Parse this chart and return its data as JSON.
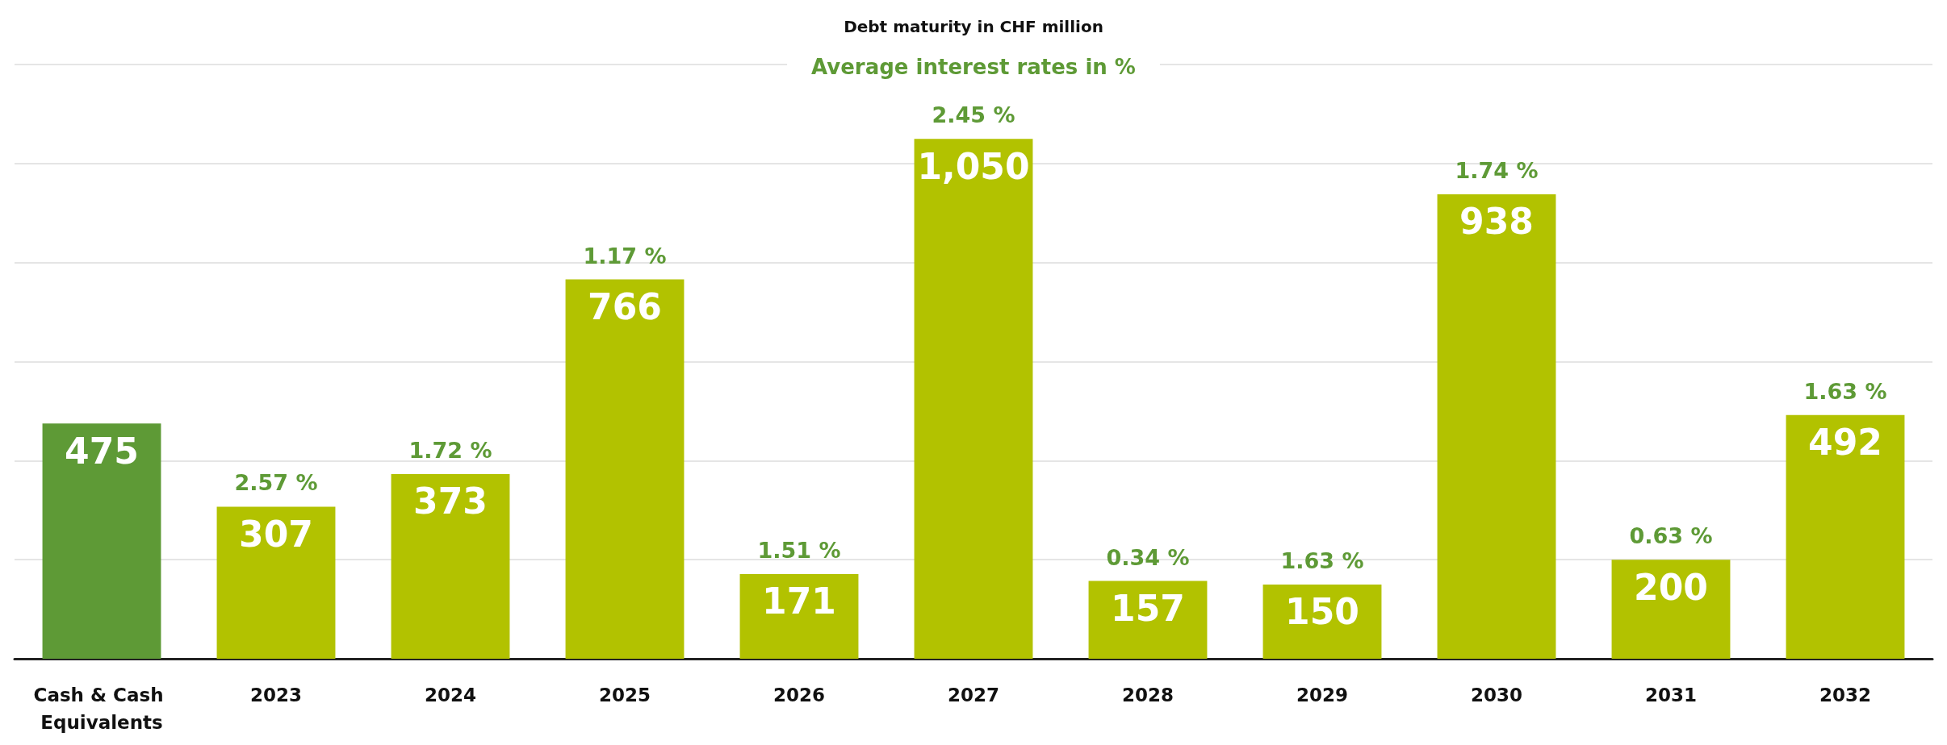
{
  "chart_data": {
    "type": "bar",
    "title": "Debt maturity in CHF million",
    "subtitle": "Average interest rates in %",
    "categories": [
      "Cash & Cash Equivalents",
      "2023",
      "2024",
      "2025",
      "2026",
      "2027",
      "2028",
      "2029",
      "2030",
      "2031",
      "2032"
    ],
    "values": [
      475,
      307,
      373,
      766,
      171,
      1050,
      157,
      150,
      938,
      200,
      492
    ],
    "value_labels": [
      "475",
      "307",
      "373",
      "766",
      "171",
      "1,050",
      "157",
      "150",
      "938",
      "200",
      "492"
    ],
    "colors": [
      "#5e9a36",
      "#b2c200",
      "#b2c200",
      "#b2c200",
      "#b2c200",
      "#b2c200",
      "#b2c200",
      "#b2c200",
      "#b2c200",
      "#b2c200",
      "#b2c200"
    ],
    "annotations": [
      {
        "text": "2.57 %",
        "x": "2023",
        "y": 307
      },
      {
        "text": "1.72 %",
        "x": "2024",
        "y": 373
      },
      {
        "text": "1.17 %",
        "x": "2025",
        "y": 766
      },
      {
        "text": "1.51 %",
        "x": "2026",
        "y": 171
      },
      {
        "text": "2.45 %",
        "x": "2027",
        "y": 1050
      },
      {
        "text": "0.34 %",
        "x": "2028",
        "y": 157
      },
      {
        "text": "1.63 %",
        "x": "2029",
        "y": 150
      },
      {
        "text": "1.74 %",
        "x": "2030",
        "y": 938
      },
      {
        "text": "0.63 %",
        "x": "2031",
        "y": 200
      },
      {
        "text": "1.63 %",
        "x": "2032",
        "y": 492
      }
    ],
    "ylim": [
      0,
      1200
    ],
    "yticks": [
      {
        "value": 0,
        "label": null
      },
      {
        "value": 200,
        "label": null
      },
      {
        "value": 400,
        "label": null
      },
      {
        "value": 600,
        "label": null
      },
      {
        "value": 800,
        "label": null
      },
      {
        "value": 1000,
        "label": null
      },
      {
        "value": 1200,
        "label": null
      }
    ],
    "tick_labels": "x",
    "grid": "y"
  }
}
